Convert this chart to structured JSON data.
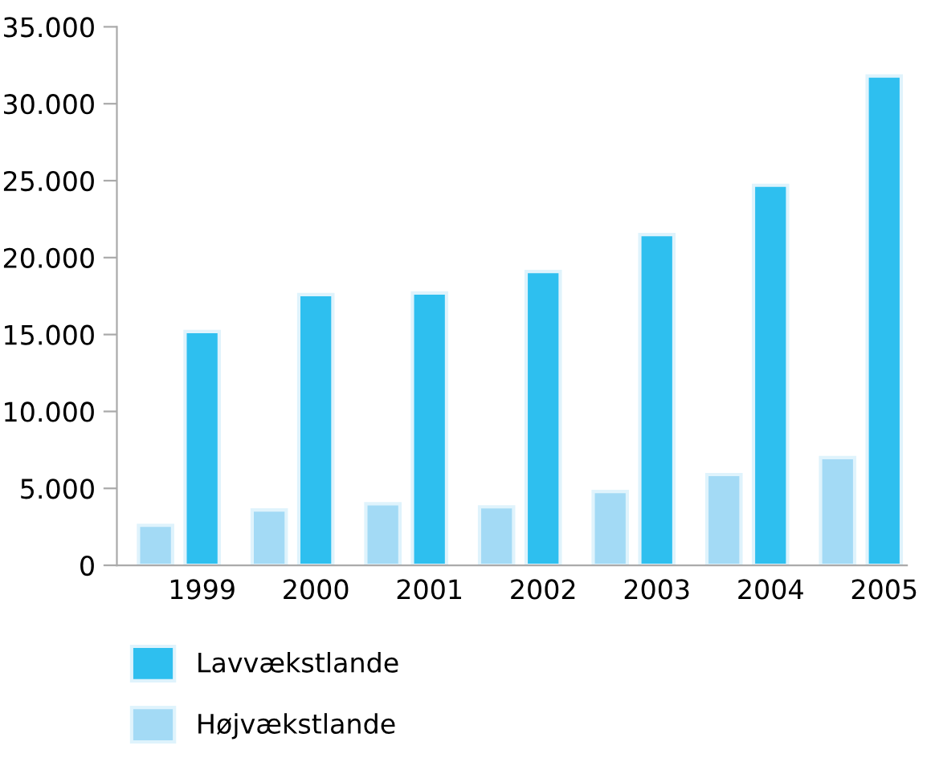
{
  "chart_data": {
    "type": "bar",
    "categories": [
      "1999",
      "2000",
      "2001",
      "2002",
      "2003",
      "2004",
      "2005"
    ],
    "series": [
      {
        "name": "Lavvækstlande",
        "color": "#2ebfef",
        "values": [
          15200,
          17600,
          17700,
          19100,
          21500,
          24700,
          31800
        ]
      },
      {
        "name": "Højvækstlande",
        "color": "#a3daf5",
        "values": [
          2600,
          3600,
          4000,
          3800,
          4800,
          5900,
          7000
        ]
      }
    ],
    "ylim": [
      0,
      35000
    ],
    "yticks": [
      {
        "value": 0,
        "label": "0"
      },
      {
        "value": 5000,
        "label": "5.000"
      },
      {
        "value": 10000,
        "label": "10.000"
      },
      {
        "value": 15000,
        "label": "15.000"
      },
      {
        "value": 20000,
        "label": "20.000"
      },
      {
        "value": 25000,
        "label": "25.000"
      },
      {
        "value": 30000,
        "label": "30.000"
      },
      {
        "value": 35000,
        "label": "35.000"
      }
    ],
    "grid": false,
    "legend": "bottom left"
  }
}
